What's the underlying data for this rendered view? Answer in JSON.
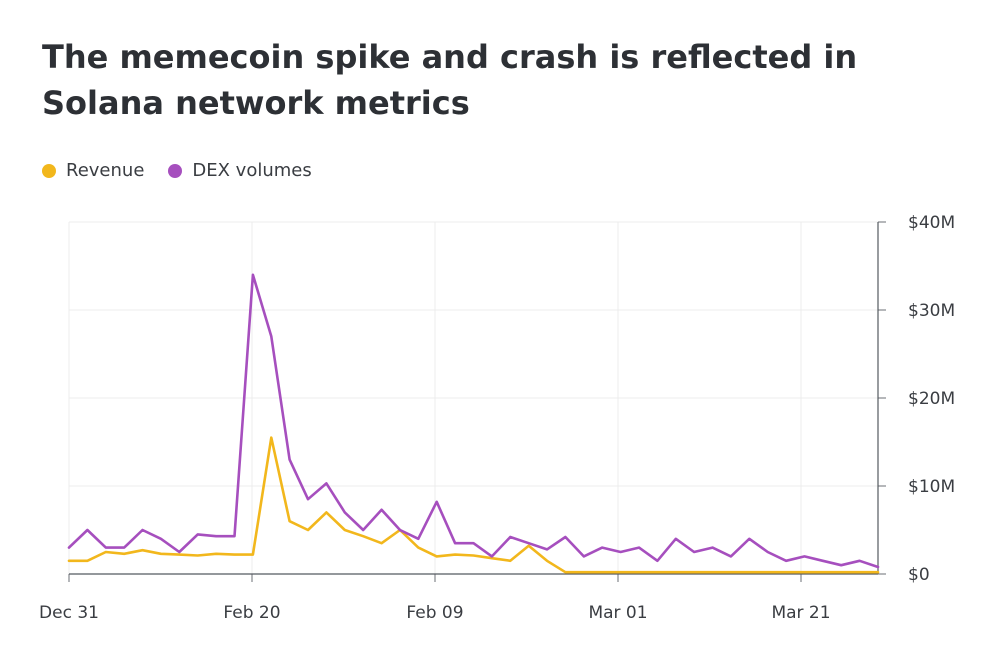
{
  "chart_data": {
    "type": "line",
    "title": "The memecoin spike and crash is reflected in Solana network metrics",
    "legend_position": "top-left",
    "grid": true,
    "x_tick_labels": [
      "Dec 31",
      "Feb 20",
      "Feb 09",
      "Mar 01",
      "Mar 21"
    ],
    "ylim": [
      0,
      40
    ],
    "y_tick_values": [
      0,
      10,
      20,
      30,
      40
    ],
    "y_tick_labels": [
      "$0",
      "$10M",
      "$20M",
      "$30M",
      "$40M"
    ],
    "series": [
      {
        "name": "Revenue",
        "color": "#f2b71c",
        "values": [
          1.5,
          1.5,
          2.5,
          2.3,
          2.7,
          2.3,
          2.2,
          2.1,
          2.3,
          2.2,
          2.2,
          15.5,
          6.0,
          5.0,
          7.0,
          5.0,
          4.3,
          3.5,
          5.0,
          3.0,
          2.0,
          2.2,
          2.1,
          1.8,
          1.5,
          3.2,
          1.5,
          0.2,
          0.2,
          0.2,
          0.2,
          0.2,
          0.2,
          0.2,
          0.2,
          0.2,
          0.2,
          0.2,
          0.2,
          0.2,
          0.2,
          0.2,
          0.2,
          0.2,
          0.2
        ]
      },
      {
        "name": "DEX volumes",
        "color": "#a64fbe",
        "values": [
          3.0,
          5.0,
          3.0,
          3.0,
          5.0,
          4.0,
          2.5,
          4.5,
          4.3,
          4.3,
          34.0,
          27.0,
          13.0,
          8.5,
          10.3,
          7.0,
          5.0,
          7.3,
          5.0,
          4.0,
          8.2,
          3.5,
          3.5,
          2.0,
          4.2,
          3.5,
          2.8,
          4.2,
          2.0,
          3.0,
          2.5,
          3.0,
          1.5,
          4.0,
          2.5,
          3.0,
          2.0,
          4.0,
          2.5,
          1.5,
          2.0,
          1.5,
          1.0,
          1.5,
          0.8
        ]
      }
    ]
  }
}
